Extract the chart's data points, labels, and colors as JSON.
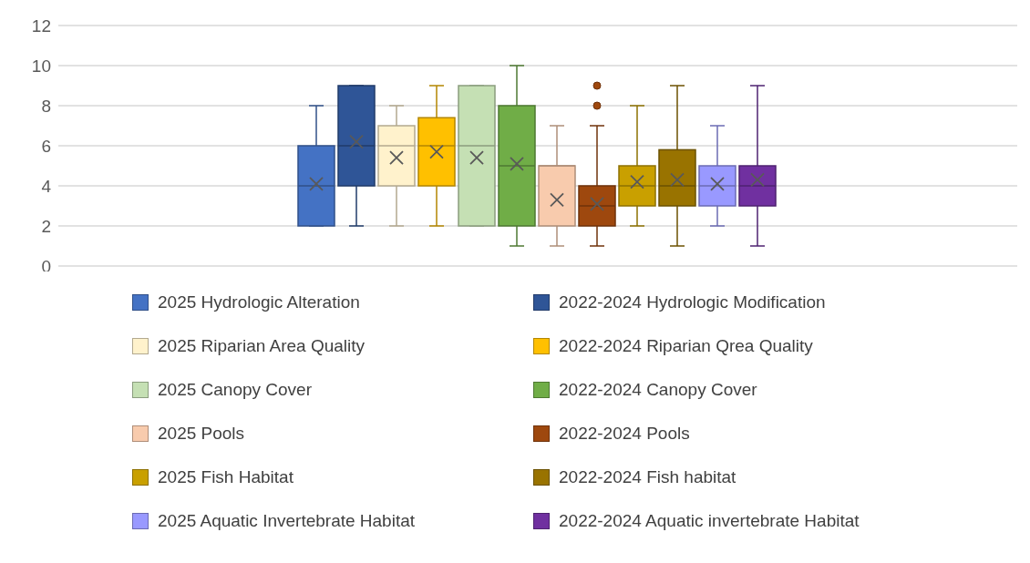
{
  "chart_data": {
    "type": "box",
    "categories": [
      null
    ],
    "ylim": [
      0,
      12
    ],
    "yticks": [
      0,
      2,
      4,
      6,
      8,
      10,
      12
    ],
    "grid": "y",
    "tick_labels": "y",
    "legend": "bottom",
    "series": [
      {
        "name": "2025 Hydrologic Alteration",
        "color": "#4472c4",
        "boxes": [
          {
            "low": 2,
            "q1": 2,
            "median": 4,
            "q3": 6,
            "high": 8,
            "mean": 4.1
          }
        ]
      },
      {
        "name": "2022-2024 Hydrologic Modification",
        "color": "#2f5597",
        "boxes": [
          {
            "low": 2,
            "q1": 4,
            "median": 6,
            "q3": 9,
            "high": 9,
            "mean": 6.2
          }
        ]
      },
      {
        "name": "2025 Riparian Area Quality",
        "color": "#fff2cc",
        "boxes": [
          {
            "low": 2,
            "q1": 4,
            "median": 6,
            "q3": 7,
            "high": 8,
            "mean": 5.4
          }
        ]
      },
      {
        "name": "2022-2024 Riparian Qrea Quality",
        "color": "#ffc000",
        "boxes": [
          {
            "low": 2,
            "q1": 4,
            "median": 6,
            "q3": 7.4,
            "high": 9,
            "mean": 5.7
          }
        ]
      },
      {
        "name": "2025 Canopy Cover",
        "color": "#c5e0b4",
        "boxes": [
          {
            "low": 2,
            "q1": 2,
            "median": 6,
            "q3": 9,
            "high": 9,
            "mean": 5.4
          }
        ]
      },
      {
        "name": "2022-2024 Canopy Cover",
        "color": "#70ad47",
        "boxes": [
          {
            "low": 1,
            "q1": 2,
            "median": 5,
            "q3": 8,
            "high": 10,
            "mean": 5.1
          }
        ]
      },
      {
        "name": "2025 Pools",
        "color": "#f8cbad",
        "boxes": [
          {
            "low": 1,
            "q1": 2,
            "median": 5,
            "q3": 5,
            "high": 7,
            "mean": 3.3
          }
        ]
      },
      {
        "name": "2022-2024 Pools",
        "color": "#9e480e",
        "boxes": [
          {
            "low": 1,
            "q1": 2,
            "median": 3,
            "q3": 4,
            "high": 7,
            "mean": 3.1,
            "outliers": [
              8,
              9
            ]
          }
        ]
      },
      {
        "name": "2025 Fish Habitat",
        "color": "#c9a000",
        "boxes": [
          {
            "low": 2,
            "q1": 3,
            "median": 4,
            "q3": 5,
            "high": 8,
            "mean": 4.2
          }
        ]
      },
      {
        "name": "2022-2024 Fish habitat",
        "color": "#997300",
        "boxes": [
          {
            "low": 1,
            "q1": 3,
            "median": 4,
            "q3": 5.8,
            "high": 9,
            "mean": 4.3
          }
        ]
      },
      {
        "name": "2025 Aquatic Invertebrate Habitat",
        "color": "#9999ff",
        "boxes": [
          {
            "low": 2,
            "q1": 3,
            "median": 4,
            "q3": 5,
            "high": 7,
            "mean": 4.1
          }
        ]
      },
      {
        "name": "2022-2024 Aquatic invertebrate Habitat",
        "color": "#7030a0",
        "boxes": [
          {
            "low": 1,
            "q1": 3,
            "median": 4,
            "q3": 5,
            "high": 9,
            "mean": 4.3
          }
        ]
      }
    ]
  }
}
